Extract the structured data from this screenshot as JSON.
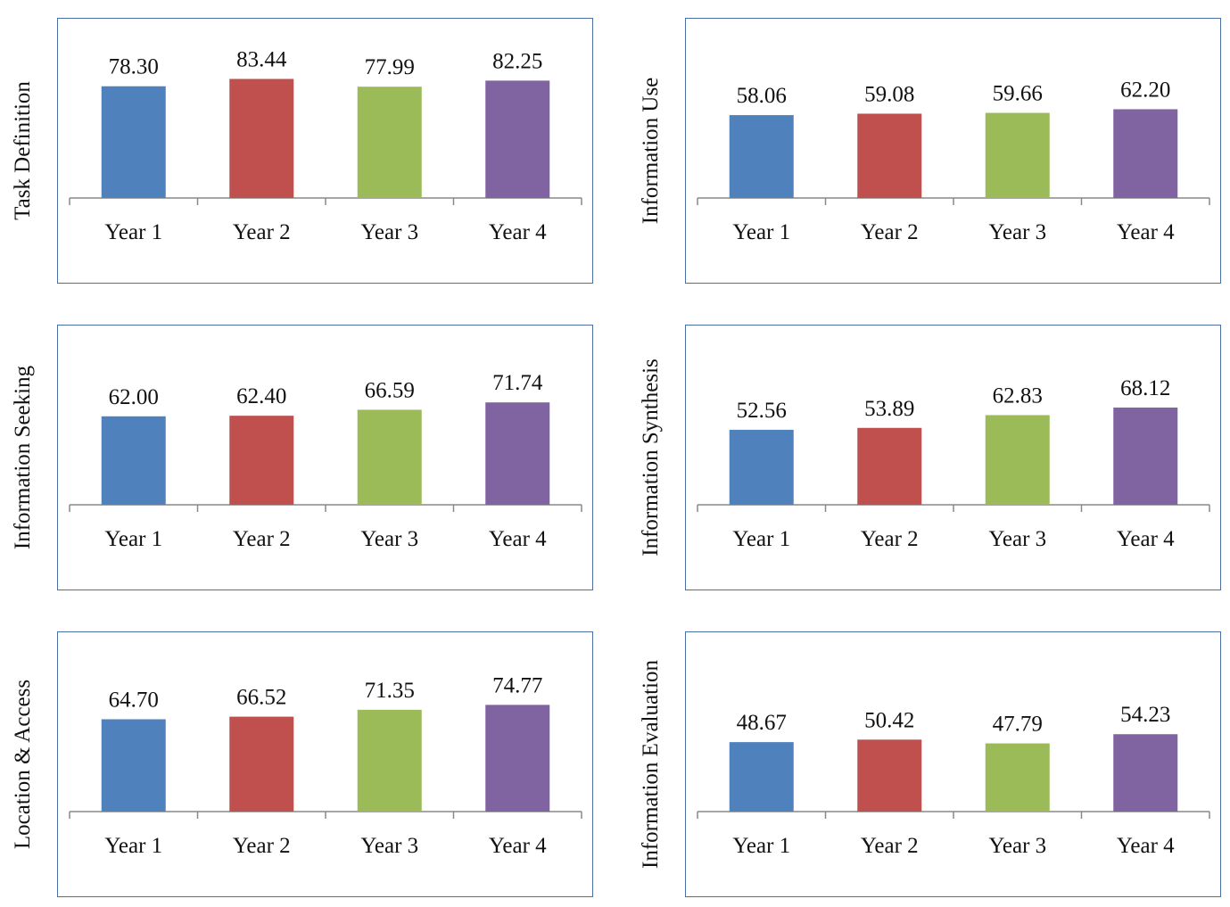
{
  "chart_data": [
    {
      "type": "bar",
      "ylabel": "Task Definition",
      "categories": [
        "Year 1",
        "Year 2",
        "Year 3",
        "Year 4"
      ],
      "values": [
        78.3,
        83.44,
        77.99,
        82.25
      ],
      "value_labels": [
        "78.30",
        "83.44",
        "77.99",
        "82.25"
      ]
    },
    {
      "type": "bar",
      "ylabel": "Information Use",
      "categories": [
        "Year 1",
        "Year 2",
        "Year 3",
        "Year 4"
      ],
      "values": [
        58.06,
        59.08,
        59.66,
        62.2
      ],
      "value_labels": [
        "58.06",
        "59.08",
        "59.66",
        "62.20"
      ]
    },
    {
      "type": "bar",
      "ylabel": "Information Seeking",
      "categories": [
        "Year 1",
        "Year 2",
        "Year 3",
        "Year 4"
      ],
      "values": [
        62.0,
        62.4,
        66.59,
        71.74
      ],
      "value_labels": [
        "62.00",
        "62.40",
        "66.59",
        "71.74"
      ]
    },
    {
      "type": "bar",
      "ylabel": "Information Synthesis",
      "categories": [
        "Year 1",
        "Year 2",
        "Year 3",
        "Year 4"
      ],
      "values": [
        52.56,
        53.89,
        62.83,
        68.12
      ],
      "value_labels": [
        "52.56",
        "53.89",
        "62.83",
        "68.12"
      ]
    },
    {
      "type": "bar",
      "ylabel": "Location & Access",
      "categories": [
        "Year 1",
        "Year 2",
        "Year 3",
        "Year 4"
      ],
      "values": [
        64.7,
        66.52,
        71.35,
        74.77
      ],
      "value_labels": [
        "64.70",
        "66.52",
        "71.35",
        "74.77"
      ]
    },
    {
      "type": "bar",
      "ylabel": "Information Evaluation",
      "categories": [
        "Year 1",
        "Year 2",
        "Year 3",
        "Year 4"
      ],
      "values": [
        48.67,
        50.42,
        47.79,
        54.23
      ],
      "value_labels": [
        "48.67",
        "50.42",
        "47.79",
        "54.23"
      ]
    }
  ],
  "colors": [
    "#4f81bd",
    "#c0504d",
    "#9bbb59",
    "#8064a2"
  ],
  "frame_color": "#4a6fa5"
}
